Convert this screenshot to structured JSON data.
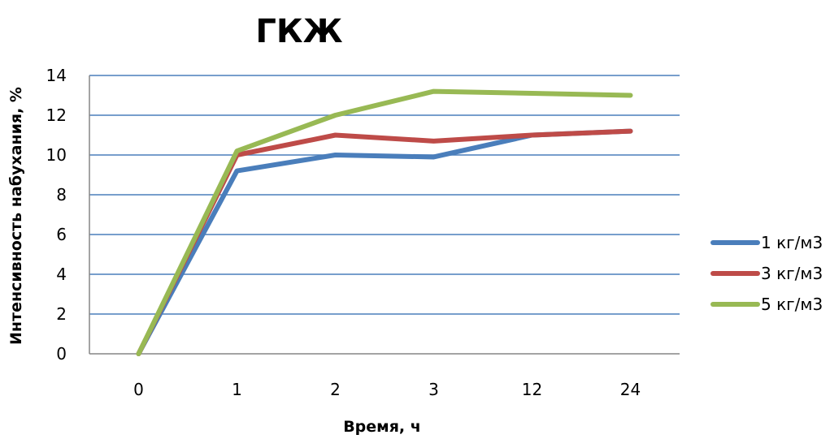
{
  "chart_data": {
    "type": "line",
    "title": "ГКЖ",
    "xlabel": "Время, ч",
    "ylabel": "Интенсивность набухания, %",
    "categories": [
      "0",
      "1",
      "2",
      "3",
      "12",
      "24"
    ],
    "ylim": [
      0,
      14
    ],
    "yticks": [
      0,
      2,
      4,
      6,
      8,
      10,
      12,
      14
    ],
    "grid": true,
    "legend_position": "right",
    "series": [
      {
        "name": "1 кг/м3",
        "color": "#4a7ebb",
        "values": [
          0,
          9.2,
          10.0,
          9.9,
          11.0,
          11.2
        ]
      },
      {
        "name": "3 кг/м3",
        "color": "#be4b48",
        "values": [
          0,
          10.0,
          11.0,
          10.7,
          11.0,
          11.2
        ]
      },
      {
        "name": "5 кг/м3",
        "color": "#98b954",
        "values": [
          0,
          10.2,
          12.0,
          13.2,
          13.1,
          13.0
        ]
      }
    ]
  }
}
